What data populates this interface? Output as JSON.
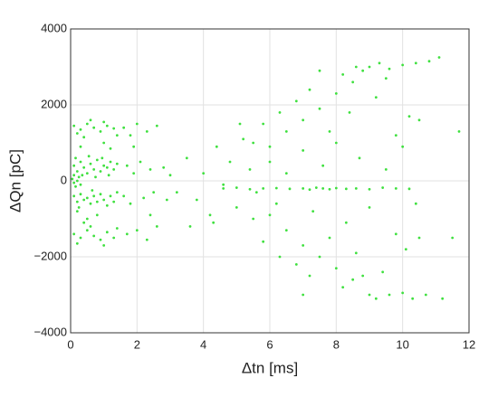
{
  "chart_data": {
    "type": "scatter",
    "xlabel": "Δtn [ms]",
    "ylabel": "ΔQn [pC]",
    "xlim": [
      0,
      12
    ],
    "ylim": [
      -4000,
      4000
    ],
    "xticks": [
      0,
      2,
      4,
      6,
      8,
      10,
      12
    ],
    "yticks": [
      {
        "value": -4000,
        "label": "−4000"
      },
      {
        "value": -2000,
        "label": "−2000"
      },
      0,
      2000,
      4000
    ],
    "grid": true,
    "color": "#3fe03f",
    "x": [
      0.1,
      0.3,
      0.5,
      0.7,
      0.9,
      1.1,
      1.3,
      0.2,
      0.6,
      1.0,
      1.4,
      0.4,
      0.1,
      0.2,
      0.3,
      0.4,
      0.5,
      0.6,
      0.7,
      0.8,
      0.9,
      1.0,
      1.1,
      1.2,
      1.3,
      1.4,
      0.15,
      0.35,
      0.55,
      0.75,
      0.95,
      1.15,
      0.05,
      0.1,
      0.2,
      0.25,
      0.3,
      0.1,
      0.15,
      0.1,
      0.2,
      0.3,
      0.4,
      0.5,
      0.6,
      0.7,
      0.8,
      0.9,
      1.0,
      1.1,
      1.2,
      1.3,
      1.4,
      0.25,
      0.65,
      0.1,
      0.3,
      0.5,
      0.7,
      0.9,
      1.1,
      1.3,
      0.2,
      0.6,
      1.0,
      1.4,
      0.4,
      0.3,
      0.8,
      1.2,
      0.5,
      1.0,
      0.2,
      1.6,
      1.8,
      2.0,
      2.3,
      2.6,
      1.7,
      1.9,
      2.1,
      2.4,
      2.8,
      1.6,
      1.8,
      2.2,
      2.5,
      2.9,
      1.7,
      2.0,
      2.3,
      2.6,
      1.9,
      2.4,
      3.0,
      6,
      6.5,
      7,
      7.5,
      8,
      8.5,
      8.8,
      9,
      9.3,
      9.6,
      10,
      10.4,
      10.8,
      11.1,
      8.2,
      8.6,
      9.5,
      7.2,
      7.8,
      8.4,
      9.2,
      10.2,
      10.5,
      6.8,
      7.5,
      5.5,
      5.8,
      6.3,
      9.8,
      6,
      6.5,
      7,
      7.5,
      8,
      8.5,
      9,
      9.2,
      9.6,
      10,
      10.3,
      10.7,
      11.2,
      8.2,
      8.8,
      9.4,
      7.2,
      7.8,
      8.6,
      10.1,
      6.8,
      5.5,
      5.8,
      6.3,
      9.8,
      7,
      10.5,
      4.6,
      5,
      5.4,
      5.8,
      6.2,
      6.6,
      7,
      7.2,
      7.4,
      7.6,
      7.8,
      8,
      8.3,
      8.6,
      9,
      9.4,
      9.8,
      10.2,
      3.5,
      3.8,
      4,
      4.2,
      4.4,
      4.6,
      4.8,
      5,
      5.2,
      5.4,
      5.6,
      6,
      6.2,
      6.5,
      7,
      7.3,
      7.6,
      8,
      8.3,
      8.7,
      9,
      9.5,
      10,
      10.4,
      11.5,
      11.7,
      4.3,
      5.1,
      3.2,
      3.6
    ],
    "values": [
      1450,
      1350,
      1500,
      1400,
      1300,
      1450,
      1380,
      1250,
      1600,
      1550,
      1200,
      1150,
      400,
      250,
      500,
      350,
      200,
      450,
      300,
      550,
      250,
      400,
      350,
      500,
      300,
      450,
      600,
      150,
      650,
      100,
      600,
      150,
      50,
      -50,
      0,
      100,
      -100,
      150,
      -150,
      -400,
      -550,
      -350,
      -500,
      -450,
      -600,
      -400,
      -550,
      -350,
      -500,
      -650,
      -400,
      -550,
      -300,
      -700,
      -250,
      -1400,
      -1500,
      -1300,
      -1450,
      -1550,
      -1350,
      -1500,
      -1650,
      -1200,
      -1700,
      -1250,
      -1100,
      900,
      -900,
      850,
      -1000,
      1000,
      -800,
      1400,
      1200,
      1500,
      1300,
      1450,
      400,
      200,
      500,
      300,
      350,
      -400,
      -600,
      -450,
      -300,
      -500,
      -1400,
      -1300,
      -1550,
      -1200,
      900,
      -900,
      150,
      900,
      1300,
      1600,
      1900,
      2300,
      2600,
      2900,
      3000,
      3100,
      2950,
      3050,
      3100,
      3150,
      3250,
      2800,
      3000,
      2700,
      2400,
      1300,
      1800,
      2200,
      1700,
      1600,
      2100,
      2900,
      1000,
      1500,
      1800,
      1200,
      -900,
      -1300,
      -1700,
      -2000,
      -2300,
      -2600,
      -3000,
      -3100,
      -3000,
      -2950,
      -3100,
      -3000,
      -3100,
      -2800,
      -2500,
      -2400,
      -2500,
      -1500,
      -1900,
      -1800,
      -2200,
      -1000,
      -1600,
      -2000,
      -1400,
      -3000,
      -1500,
      -200,
      -180,
      -220,
      -200,
      -190,
      -210,
      -200,
      -230,
      -180,
      -200,
      -220,
      -190,
      -210,
      -200,
      -220,
      -180,
      -200,
      -210,
      600,
      -500,
      200,
      -900,
      900,
      -100,
      500,
      -700,
      1100,
      300,
      -300,
      500,
      -600,
      200,
      800,
      -800,
      400,
      1000,
      -1100,
      600,
      -700,
      300,
      900,
      -600,
      -1500,
      1300,
      -1100,
      1500,
      -300,
      -1200
    ]
  }
}
